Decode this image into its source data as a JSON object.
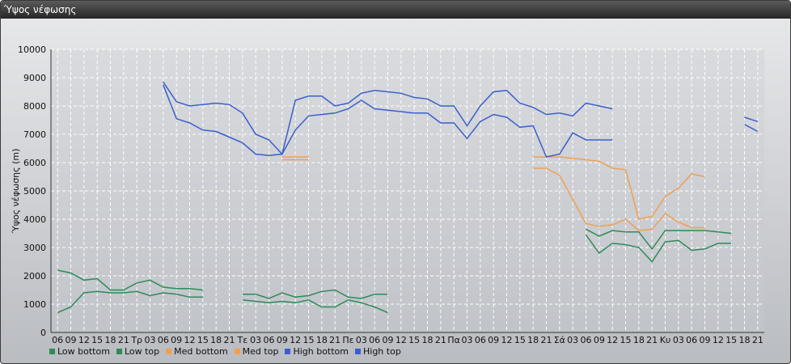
{
  "window": {
    "title": "Ύψος νέφωσης"
  },
  "chart_data": {
    "type": "line",
    "title": "",
    "ylabel": "Ύψος νέφωσης (m)",
    "ylim": [
      0,
      10000
    ],
    "yticks": [
      0,
      1000,
      2000,
      3000,
      4000,
      5000,
      6000,
      7000,
      8000,
      9000,
      10000
    ],
    "grid": true,
    "legend_position": "bottom-left",
    "categories": [
      "06",
      "09",
      "12",
      "15",
      "18",
      "21",
      "Τρ",
      "03",
      "06",
      "09",
      "12",
      "15",
      "18",
      "21",
      "Τε",
      "03",
      "06",
      "09",
      "12",
      "15",
      "18",
      "21",
      "Πε",
      "03",
      "06",
      "09",
      "12",
      "15",
      "18",
      "21",
      "Πα",
      "03",
      "06",
      "09",
      "12",
      "15",
      "18",
      "21",
      "Σά",
      "03",
      "06",
      "09",
      "12",
      "15",
      "18",
      "21",
      "Κυ",
      "03",
      "06",
      "09",
      "12",
      "15",
      "18",
      "21"
    ],
    "series": [
      {
        "name": "Low bottom",
        "color": "#2e8b57",
        "values": [
          700,
          900,
          1400,
          1450,
          1400,
          1400,
          1450,
          1300,
          1400,
          1350,
          1250,
          1250,
          null,
          null,
          1150,
          1100,
          1050,
          1100,
          1050,
          1150,
          900,
          900,
          1150,
          1050,
          900,
          700,
          null,
          null,
          null,
          null,
          null,
          null,
          null,
          null,
          null,
          null,
          null,
          null,
          null,
          null,
          3450,
          2800,
          3150,
          3100,
          3000,
          2500,
          3200,
          3250,
          2900,
          2950,
          3150,
          3150,
          null,
          null
        ]
      },
      {
        "name": "Low top",
        "color": "#2e8b57",
        "values": [
          2200,
          2100,
          1850,
          1900,
          1500,
          1500,
          1750,
          1850,
          1600,
          1550,
          1550,
          1500,
          null,
          null,
          1350,
          1350,
          1200,
          1400,
          1250,
          1300,
          1450,
          1500,
          1250,
          1200,
          1350,
          1350,
          null,
          null,
          null,
          null,
          null,
          null,
          null,
          null,
          null,
          null,
          null,
          null,
          null,
          null,
          3650,
          3400,
          3600,
          3550,
          3550,
          2950,
          3600,
          3600,
          3600,
          3600,
          3550,
          3500,
          null,
          null
        ]
      },
      {
        "name": "Med bottom",
        "color": "#f0a050",
        "values": [
          null,
          null,
          null,
          null,
          null,
          null,
          null,
          null,
          null,
          null,
          null,
          null,
          null,
          null,
          null,
          null,
          null,
          6100,
          6100,
          6100,
          null,
          null,
          null,
          null,
          null,
          null,
          null,
          null,
          null,
          null,
          null,
          null,
          null,
          null,
          null,
          null,
          5800,
          5800,
          5550,
          4700,
          3850,
          3750,
          3800,
          4000,
          3600,
          3650,
          4200,
          3900,
          3700,
          3700,
          null,
          null,
          null,
          null
        ]
      },
      {
        "name": "Med top",
        "color": "#f0a050",
        "values": [
          null,
          null,
          null,
          null,
          null,
          null,
          null,
          null,
          null,
          null,
          null,
          null,
          null,
          null,
          null,
          null,
          null,
          6200,
          6200,
          6200,
          null,
          null,
          null,
          null,
          null,
          null,
          null,
          null,
          null,
          null,
          null,
          null,
          null,
          null,
          null,
          null,
          6200,
          6200,
          6200,
          6150,
          6100,
          6050,
          5800,
          5750,
          4000,
          4100,
          4800,
          5100,
          5600,
          5500,
          null,
          null,
          null,
          null
        ]
      },
      {
        "name": "High bottom",
        "color": "#3a5fcd",
        "values": [
          null,
          null,
          null,
          null,
          null,
          null,
          null,
          null,
          8750,
          7550,
          7400,
          7150,
          7100,
          6900,
          6700,
          6300,
          6250,
          6300,
          7150,
          7650,
          7700,
          7750,
          7900,
          8200,
          7900,
          7850,
          7800,
          7750,
          7750,
          7400,
          7400,
          6850,
          7450,
          7700,
          7600,
          7250,
          7300,
          6200,
          6300,
          7050,
          6800,
          6800,
          6800,
          null,
          null,
          null,
          null,
          null,
          null,
          null,
          null,
          null,
          7350,
          7100
        ]
      },
      {
        "name": "High top",
        "color": "#3a5fcd",
        "values": [
          null,
          null,
          null,
          null,
          null,
          null,
          null,
          null,
          8850,
          8150,
          8000,
          8050,
          8100,
          8050,
          7750,
          7000,
          6800,
          6300,
          8200,
          8350,
          8350,
          8000,
          8100,
          8450,
          8550,
          8500,
          8450,
          8300,
          8250,
          8000,
          8000,
          7300,
          8000,
          8500,
          8550,
          8100,
          7950,
          7700,
          7750,
          7650,
          8100,
          8000,
          7900,
          null,
          null,
          null,
          null,
          null,
          null,
          null,
          null,
          null,
          7600,
          7450
        ]
      }
    ]
  }
}
